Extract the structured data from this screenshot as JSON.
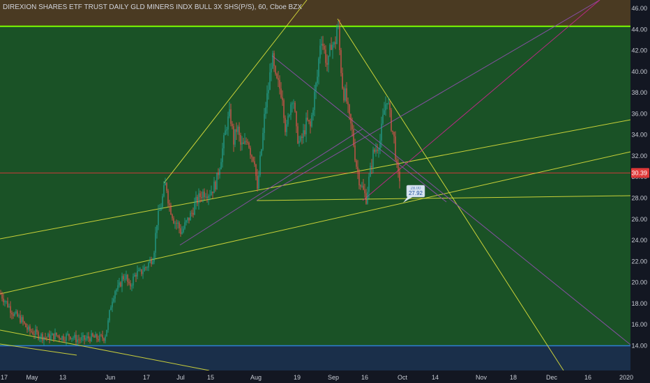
{
  "title": "DIREXION SHARES ETF TRUST DAILY GLD MINERS INDX BULL 3X SHS(P/S), 60, Cboe BZX",
  "colors": {
    "background": "#131722",
    "zone_main": "#1a5226",
    "zone_top": "#4a3a22",
    "zone_bottom": "#1a2f4a",
    "resistance_line": "#7cfc00",
    "support_line": "#2f7fd6",
    "trendline_yellow": "#d4d83a",
    "trendline_purple": "#8a4fa8",
    "trendline_magenta": "#c02888",
    "price_line": "#e03a3a",
    "bull": "#26a69a",
    "bear": "#ef5350",
    "callout_bg": "#d8e4f0",
    "callout_text": "#1a4a9a"
  },
  "chart_data": {
    "type": "candlestick",
    "interval": "60",
    "exchange": "Cboe BZX",
    "yaxis_ticks": [
      "46.00",
      "44.00",
      "42.00",
      "40.00",
      "38.00",
      "36.00",
      "34.00",
      "32.00",
      "30.00",
      "28.00",
      "26.00",
      "24.00",
      "22.00",
      "20.00",
      "18.00",
      "16.00",
      "14.00"
    ],
    "ylim": [
      13.3,
      47
    ],
    "xaxis_ticks": [
      "17",
      "May",
      "13",
      "Jun",
      "17",
      "Jul",
      "15",
      "Aug",
      "19",
      "Sep",
      "16",
      "Oct",
      "14",
      "Nov",
      "18",
      "Dec",
      "16",
      "2020"
    ],
    "horizontal_levels": {
      "resistance": 44.3,
      "support": 14.0,
      "last_price": 30.39
    },
    "last_price_label": "30.39",
    "callout_label": "27.92",
    "callout_label_hidden": "28.00",
    "price_path": [
      [
        0,
        19.0
      ],
      [
        10,
        18.0
      ],
      [
        20,
        17.0
      ],
      [
        30,
        16.5
      ],
      [
        40,
        15.5
      ],
      [
        50,
        15.2
      ],
      [
        60,
        14.9
      ],
      [
        70,
        14.8
      ],
      [
        80,
        15.0
      ],
      [
        90,
        14.8
      ],
      [
        100,
        15.0
      ],
      [
        110,
        14.6
      ],
      [
        120,
        14.6
      ],
      [
        130,
        14.8
      ],
      [
        140,
        14.7
      ],
      [
        150,
        14.8
      ],
      [
        155,
        16.2
      ],
      [
        160,
        18.3
      ],
      [
        165,
        19.3
      ],
      [
        170,
        19.4
      ],
      [
        175,
        20.4
      ],
      [
        180,
        20.7
      ],
      [
        185,
        19.5
      ],
      [
        190,
        20.2
      ],
      [
        195,
        20.9
      ],
      [
        200,
        20.8
      ],
      [
        205,
        21.2
      ],
      [
        210,
        21.5
      ],
      [
        215,
        22.0
      ],
      [
        220,
        22.6
      ],
      [
        225,
        25.8
      ],
      [
        230,
        27.0
      ],
      [
        235,
        28.7
      ],
      [
        238,
        29.5
      ],
      [
        242,
        27.5
      ],
      [
        246,
        26.7
      ],
      [
        250,
        25.8
      ],
      [
        255,
        25.5
      ],
      [
        260,
        24.7
      ],
      [
        265,
        25.4
      ],
      [
        270,
        26.0
      ],
      [
        275,
        26.6
      ],
      [
        280,
        27.5
      ],
      [
        285,
        28.0
      ],
      [
        290,
        28.5
      ],
      [
        295,
        28.6
      ],
      [
        300,
        28.5
      ],
      [
        305,
        28.9
      ],
      [
        310,
        29.5
      ],
      [
        315,
        31.2
      ],
      [
        320,
        33.0
      ],
      [
        325,
        35.0
      ],
      [
        330,
        36.0
      ],
      [
        335,
        33.4
      ],
      [
        340,
        34.8
      ],
      [
        345,
        33.0
      ],
      [
        350,
        32.9
      ],
      [
        355,
        33.7
      ],
      [
        360,
        32.2
      ],
      [
        365,
        31.7
      ],
      [
        369,
        28.5
      ],
      [
        372,
        31.0
      ],
      [
        376,
        33.2
      ],
      [
        380,
        36.4
      ],
      [
        385,
        38.4
      ],
      [
        390,
        41.5
      ],
      [
        395,
        39.2
      ],
      [
        400,
        38.6
      ],
      [
        405,
        37.8
      ],
      [
        410,
        34.0
      ],
      [
        415,
        36.4
      ],
      [
        420,
        38.0
      ],
      [
        425,
        34.2
      ],
      [
        430,
        33.1
      ],
      [
        435,
        34.1
      ],
      [
        440,
        35.3
      ],
      [
        445,
        34.7
      ],
      [
        450,
        37.4
      ],
      [
        455,
        39.5
      ],
      [
        460,
        43.6
      ],
      [
        465,
        41.9
      ],
      [
        470,
        40.4
      ],
      [
        475,
        42.8
      ],
      [
        480,
        42.3
      ],
      [
        484,
        44.9
      ],
      [
        488,
        41.0
      ],
      [
        492,
        38.0
      ],
      [
        496,
        37.7
      ],
      [
        500,
        35.7
      ],
      [
        505,
        34.3
      ],
      [
        510,
        31.5
      ],
      [
        515,
        29.8
      ],
      [
        520,
        28.8
      ],
      [
        525,
        28.0
      ],
      [
        530,
        30.2
      ],
      [
        535,
        32.2
      ],
      [
        540,
        32.8
      ],
      [
        545,
        33.5
      ],
      [
        550,
        36.0
      ],
      [
        555,
        37.6
      ],
      [
        560,
        35.3
      ],
      [
        565,
        33.6
      ],
      [
        570,
        30.1
      ],
      [
        573,
        29.9
      ]
    ]
  }
}
